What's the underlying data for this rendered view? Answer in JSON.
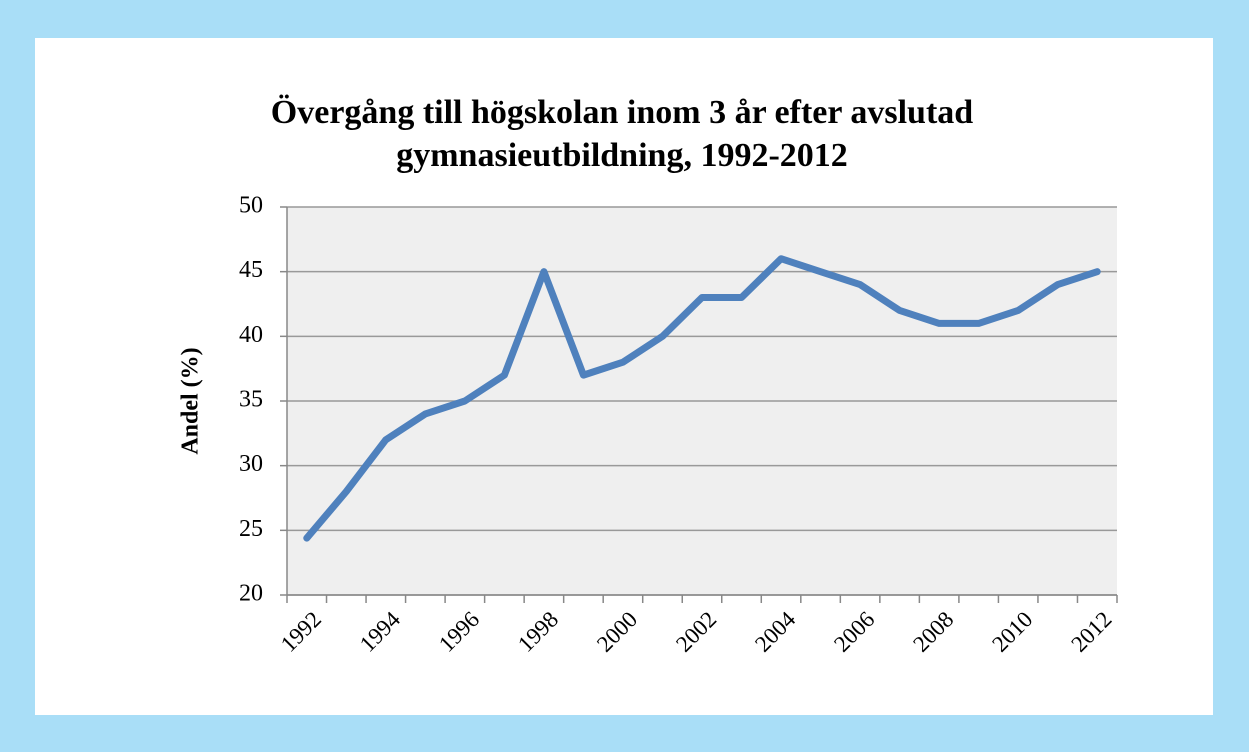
{
  "chart_data": {
    "type": "line",
    "title": [
      "Övergång till högskolan inom 3 år efter avslutad",
      "gymnasieutbildning, 1992-2012"
    ],
    "y_label": "Andel (%)",
    "categories": [
      "1992",
      null,
      "1994",
      null,
      "1996",
      null,
      "1998",
      null,
      "2000",
      null,
      "2002",
      null,
      "2004",
      null,
      "2006",
      null,
      "2008",
      null,
      "2010",
      null,
      "2012"
    ],
    "series": [
      {
        "name": "Andel",
        "color": "#4f81bd",
        "values": [
          24.4,
          28,
          32,
          34,
          35,
          37,
          45,
          37,
          38,
          40,
          43,
          43,
          46,
          45,
          44,
          42,
          41,
          41,
          42,
          44,
          45
        ]
      }
    ],
    "ylim": [
      20,
      50
    ],
    "yticks": [
      20,
      25,
      30,
      35,
      40,
      45,
      50
    ],
    "grid": true
  }
}
